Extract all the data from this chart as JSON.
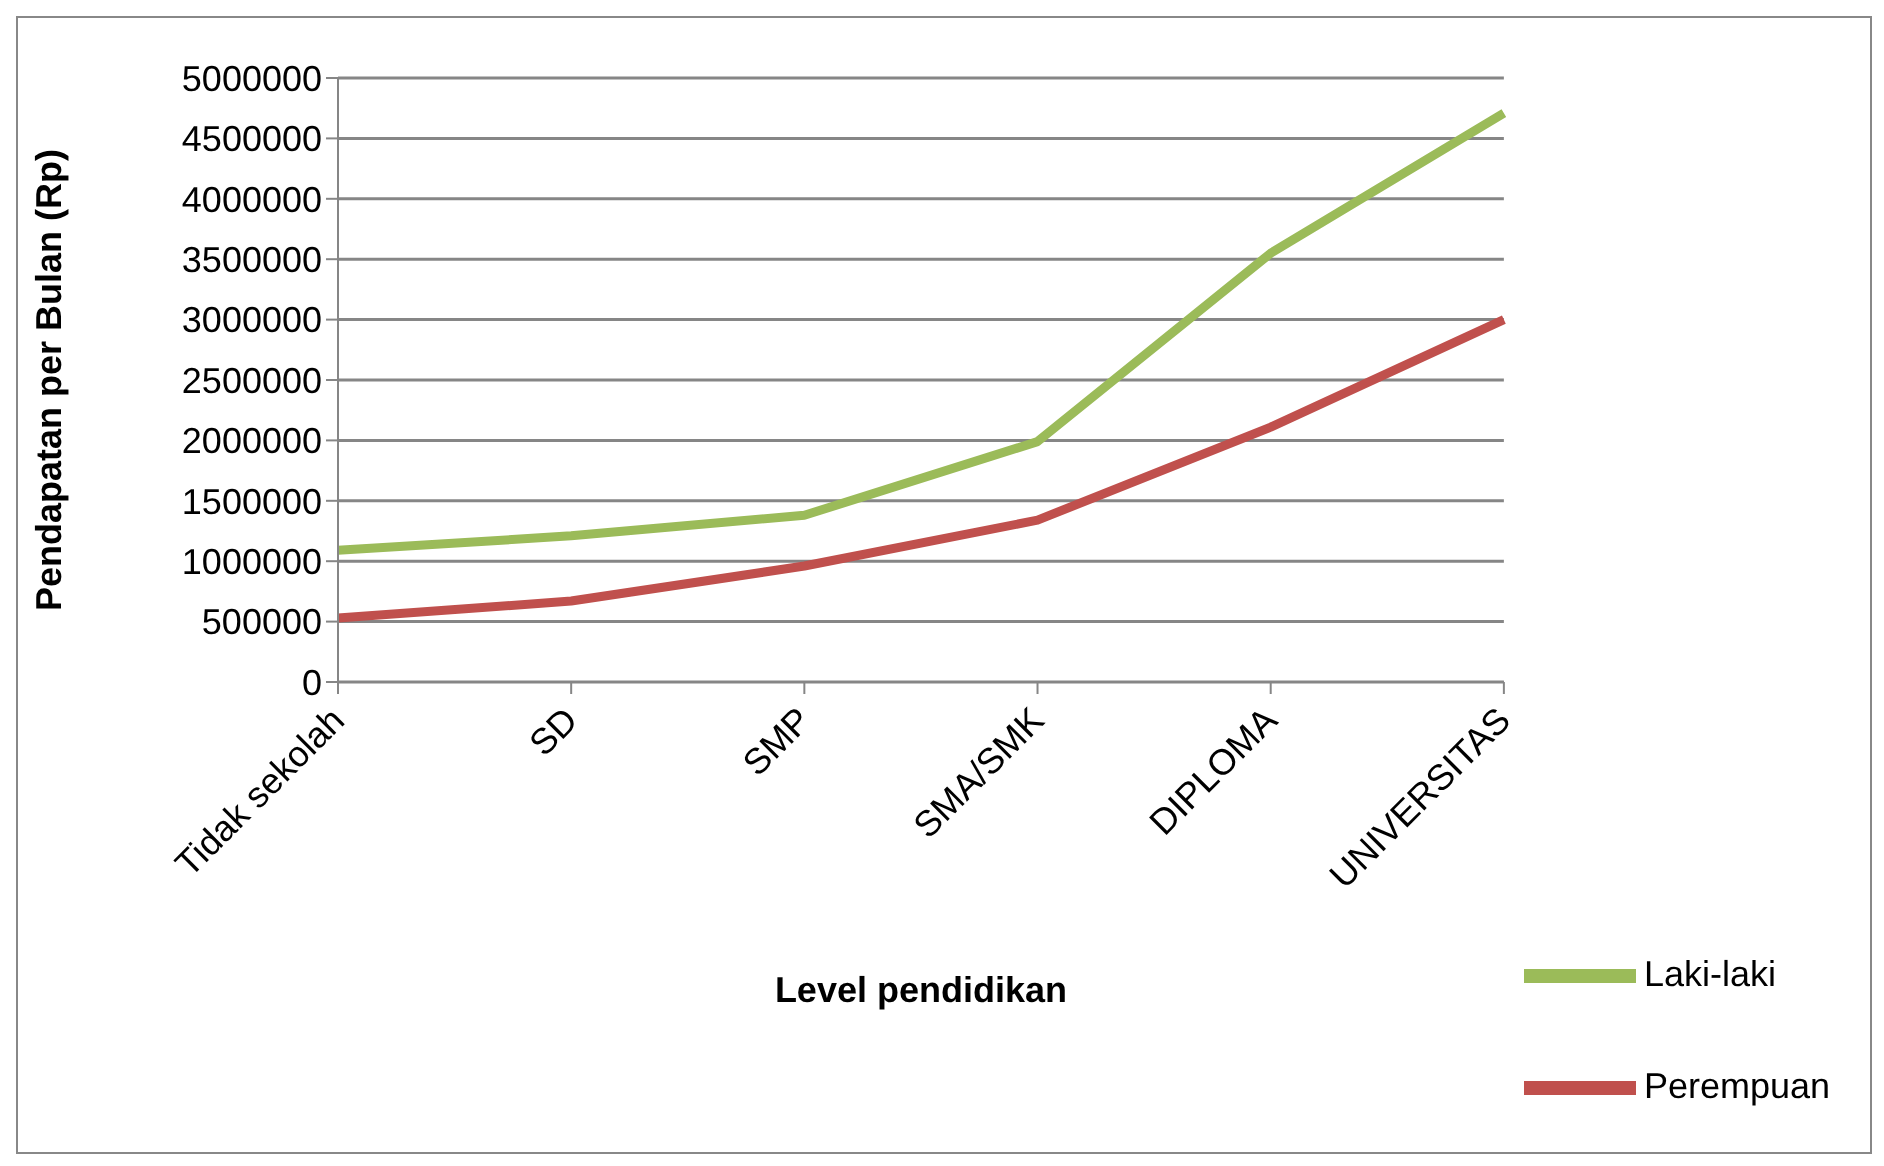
{
  "chart_data": {
    "type": "line",
    "xlabel": "Level pendidikan",
    "ylabel": "Pendapatan per Bulan (Rp)",
    "categories": [
      "Tidak sekolah",
      "SD",
      "SMP",
      "SMA/SMK",
      "DIPLOMA",
      "UNIVERSITAS"
    ],
    "series": [
      {
        "name": "Perempuan",
        "color": "#c0504d",
        "values": [
          530000,
          670000,
          960000,
          1340000,
          2110000,
          3000000
        ]
      },
      {
        "name": "Laki-laki",
        "color": "#9bbb59",
        "values": [
          1090000,
          1210000,
          1380000,
          1990000,
          3550000,
          4710000
        ]
      }
    ],
    "ylim": [
      0,
      5000000
    ],
    "yticks": [
      0,
      500000,
      1000000,
      1500000,
      2000000,
      2500000,
      3000000,
      3500000,
      4000000,
      4500000,
      5000000
    ],
    "grid": "y",
    "legend": "bottom right",
    "marker": "none",
    "line_style": "solid"
  }
}
